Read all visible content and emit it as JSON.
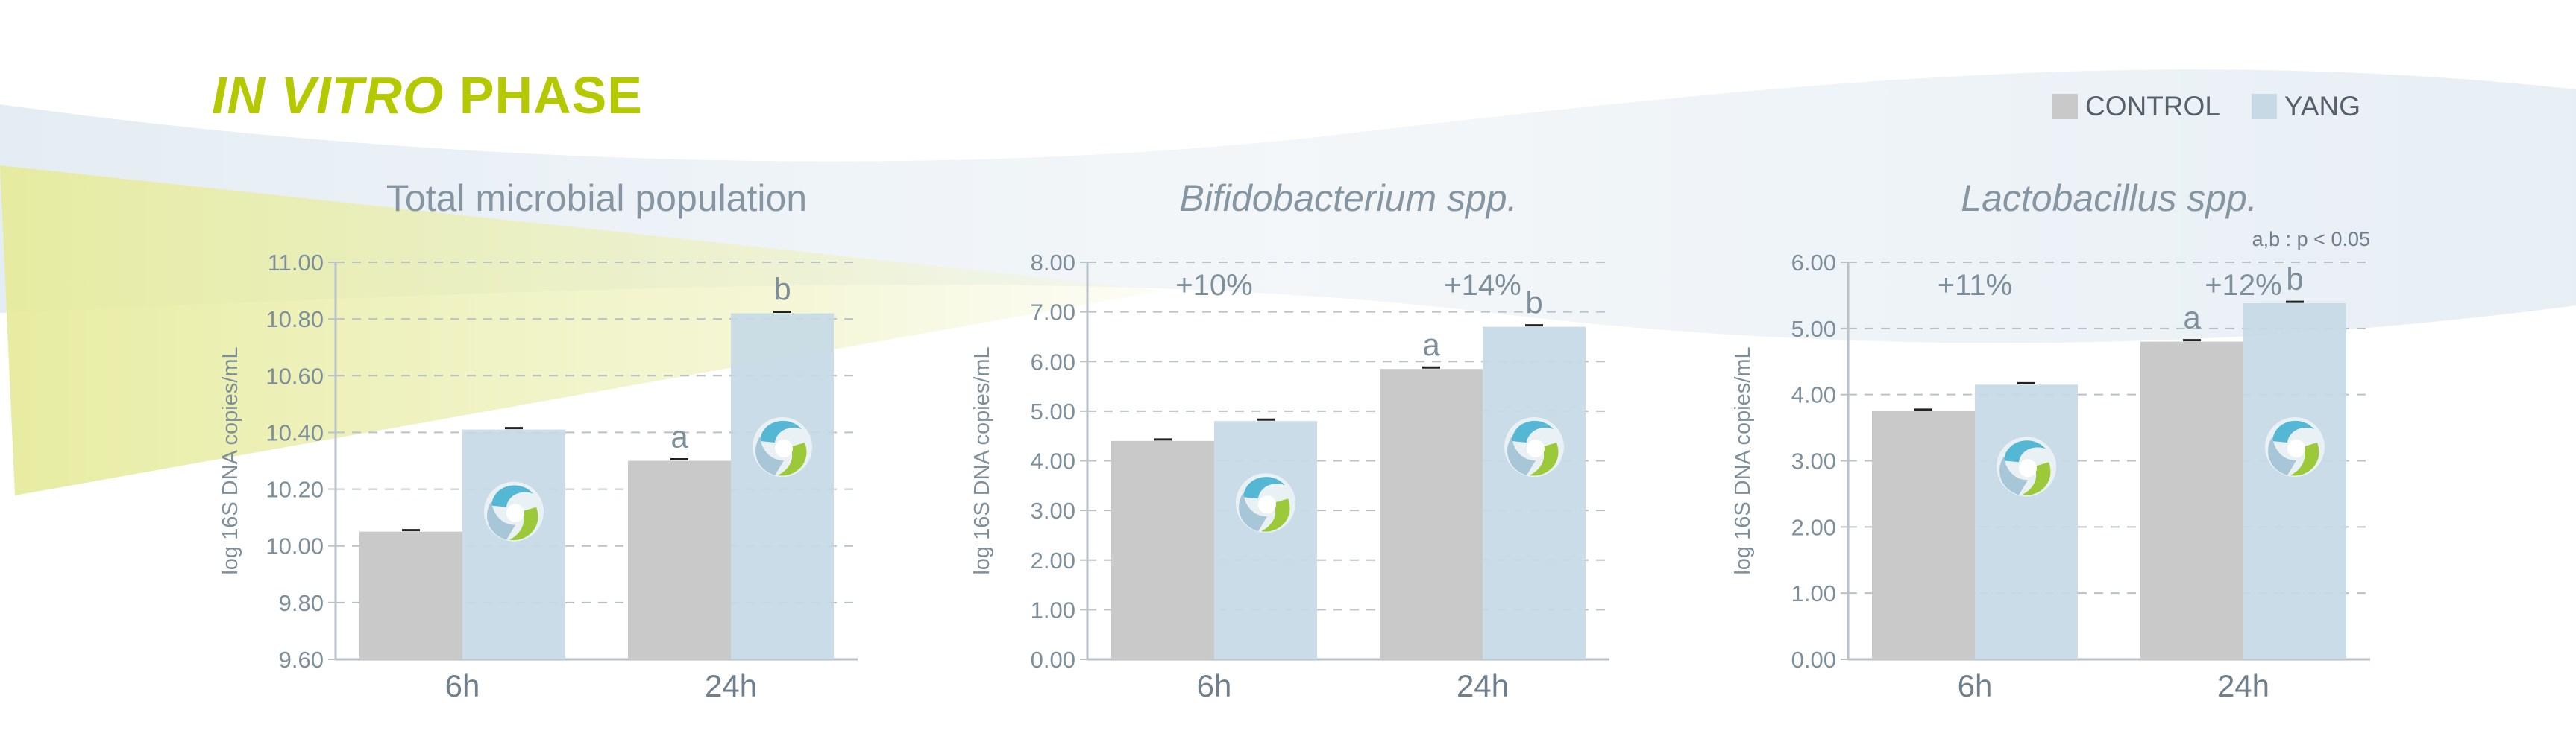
{
  "header": {
    "title_italic": "IN VITRO",
    "title_rest": "PHASE"
  },
  "legend": {
    "items": [
      "CONTROL",
      "YANG"
    ]
  },
  "colors": {
    "accent": "#b5c900",
    "control": "#c9c9c9",
    "yang": "#c6d9e5",
    "axis_text": "#7d8f9b",
    "title_text": "#8596a2"
  },
  "significance_note": "a,b : p < 0.05",
  "chart_data": [
    {
      "type": "bar",
      "title": "Total microbial population",
      "title_italic": false,
      "ylabel": "log 16S DNA copies/mL",
      "ylim": [
        9.6,
        11.0
      ],
      "yticks": [
        "9.60",
        "9.80",
        "10.00",
        "10.20",
        "10.40",
        "10.60",
        "10.80",
        "11.00"
      ],
      "categories": [
        "6h",
        "24h"
      ],
      "series": [
        {
          "name": "CONTROL",
          "values": [
            10.05,
            10.3
          ]
        },
        {
          "name": "YANG",
          "values": [
            10.41,
            10.82
          ]
        }
      ],
      "bar_labels": {
        "CONTROL": [
          "",
          "a"
        ],
        "YANG": [
          "",
          "b"
        ]
      },
      "increase_labels": [
        "",
        ""
      ]
    },
    {
      "type": "bar",
      "title": "Bifidobacterium spp.",
      "title_italic": true,
      "ylabel": "log 16S DNA copies/mL",
      "ylim": [
        0,
        8
      ],
      "yticks": [
        "0.00",
        "1.00",
        "2.00",
        "3.00",
        "4.00",
        "5.00",
        "6.00",
        "7.00",
        "8.00"
      ],
      "categories": [
        "6h",
        "24h"
      ],
      "series": [
        {
          "name": "CONTROL",
          "values": [
            4.4,
            5.85
          ]
        },
        {
          "name": "YANG",
          "values": [
            4.8,
            6.7
          ]
        }
      ],
      "bar_labels": {
        "CONTROL": [
          "",
          "a"
        ],
        "YANG": [
          "",
          "b"
        ]
      },
      "increase_labels": [
        "+10%",
        "+14%"
      ]
    },
    {
      "type": "bar",
      "title": "Lactobacillus spp.",
      "title_italic": true,
      "ylabel": "log 16S DNA copies/mL",
      "ylim": [
        0,
        6
      ],
      "yticks": [
        "0.00",
        "1.00",
        "2.00",
        "3.00",
        "4.00",
        "5.00",
        "6.00"
      ],
      "categories": [
        "6h",
        "24h"
      ],
      "series": [
        {
          "name": "CONTROL",
          "values": [
            3.75,
            4.8
          ]
        },
        {
          "name": "YANG",
          "values": [
            4.15,
            5.38
          ]
        }
      ],
      "bar_labels": {
        "CONTROL": [
          "",
          "a"
        ],
        "YANG": [
          "",
          "b"
        ]
      },
      "increase_labels": [
        "+11%",
        "+12%"
      ]
    }
  ]
}
